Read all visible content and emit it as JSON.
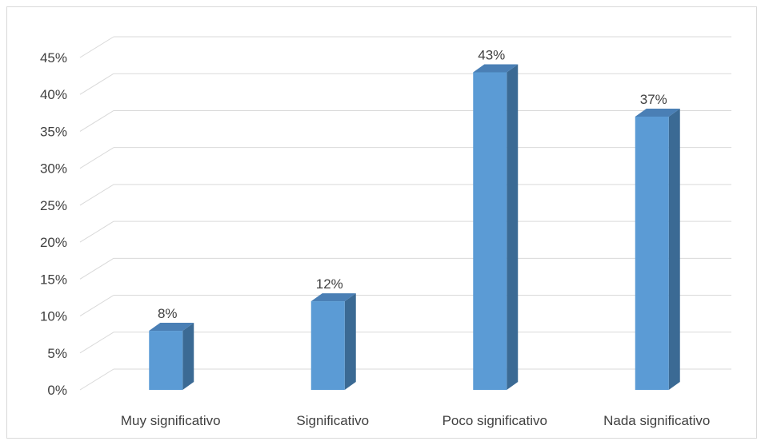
{
  "chart_data": {
    "type": "bar",
    "categories": [
      "Muy significativo",
      "Significativo",
      "Poco significativo",
      "Nada significativo"
    ],
    "values": [
      8,
      12,
      43,
      37
    ],
    "data_labels": [
      "8%",
      "12%",
      "43%",
      "37%"
    ],
    "y_ticks": [
      "0%",
      "5%",
      "10%",
      "15%",
      "20%",
      "25%",
      "30%",
      "35%",
      "40%",
      "45%"
    ],
    "ylim": [
      0,
      45
    ],
    "grid": true,
    "legend": false,
    "style": "3d-column",
    "colors": {
      "front": "#5B9BD5",
      "side": "#3B6A94",
      "top": "#4A7FB5",
      "grid": "#d9d9d9"
    }
  }
}
